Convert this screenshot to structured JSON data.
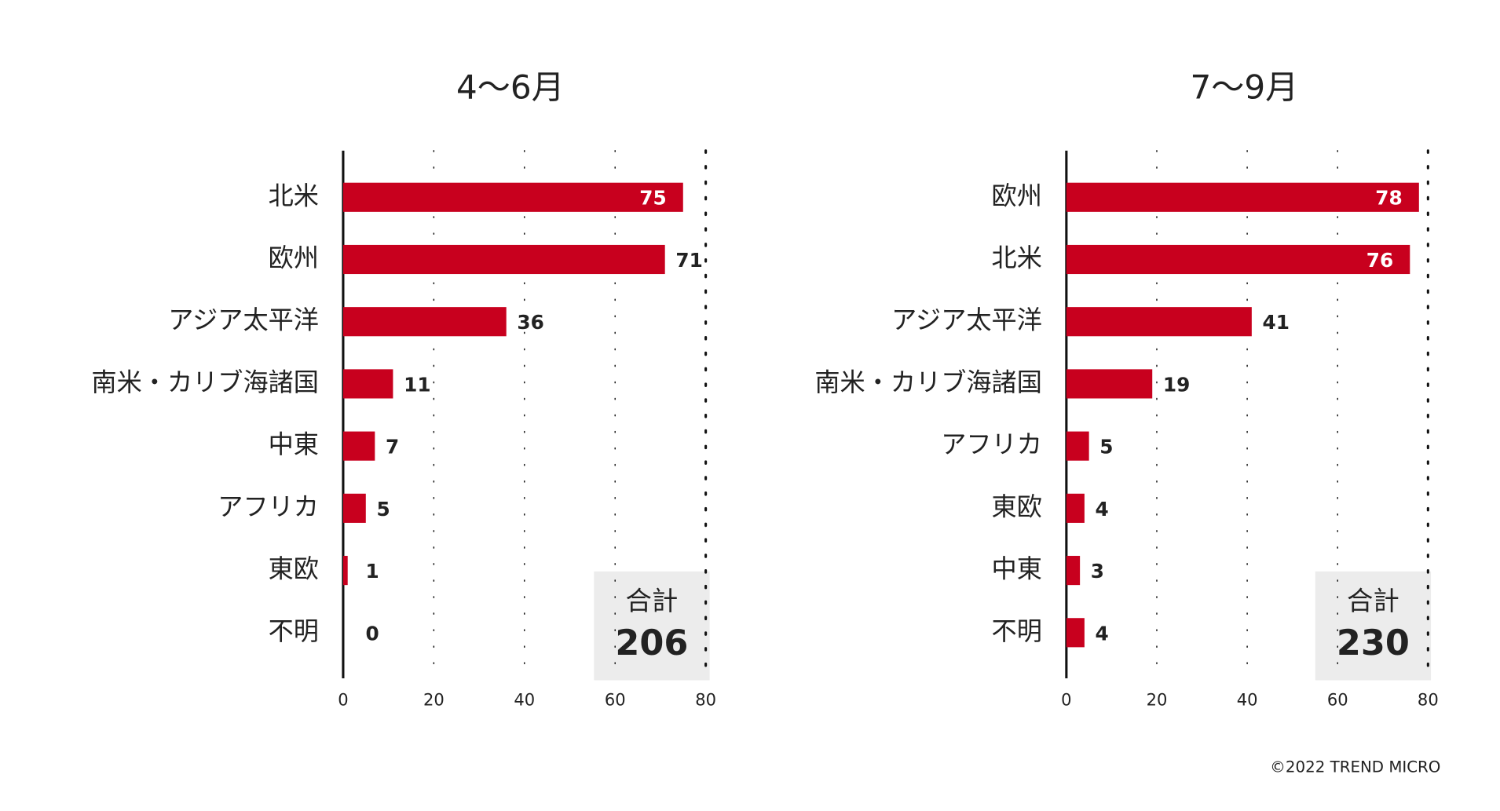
{
  "chart_data": [
    {
      "type": "bar",
      "orientation": "horizontal",
      "title": "4〜6月",
      "categories": [
        "北米",
        "欧州",
        "アジア太平洋",
        "南米・カリブ海諸国",
        "中東",
        "アフリカ",
        "東欧",
        "不明"
      ],
      "values": [
        75,
        71,
        36,
        11,
        7,
        5,
        1,
        0
      ],
      "color": "#c8001e",
      "xlim": [
        0,
        80
      ],
      "xticks": [
        0,
        20,
        40,
        60,
        80
      ],
      "grid": true,
      "total_label": "合計",
      "total": 206
    },
    {
      "type": "bar",
      "orientation": "horizontal",
      "title": "7〜9月",
      "categories": [
        "欧州",
        "北米",
        "アジア太平洋",
        "南米・カリブ海諸国",
        "アフリカ",
        "東欧",
        "中東",
        "不明"
      ],
      "values": [
        78,
        76,
        41,
        19,
        5,
        4,
        3,
        4
      ],
      "color": "#c8001e",
      "xlim": [
        0,
        80
      ],
      "xticks": [
        0,
        20,
        40,
        60,
        80
      ],
      "grid": true,
      "total_label": "合計",
      "total": 230
    }
  ],
  "footer": "©2022 TREND MICRO"
}
